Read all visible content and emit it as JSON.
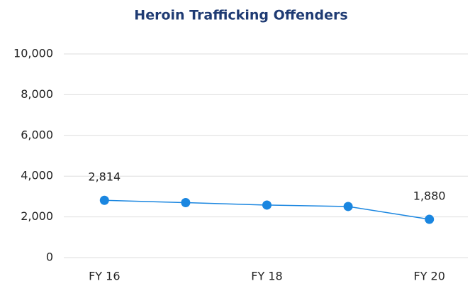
{
  "chart_data": {
    "type": "line",
    "title": "Heroin Trafficking Offenders",
    "categories": [
      "FY 16",
      null,
      "FY 18",
      null,
      "FY 20"
    ],
    "series": [
      {
        "name": "Heroin Trafficking Offenders",
        "color": "#1a86e0",
        "values": [
          2814,
          2700,
          2580,
          2510,
          1880
        ],
        "value_labels": [
          "2,814",
          null,
          null,
          null,
          "1,880"
        ]
      }
    ],
    "ylim": [
      0,
      10000
    ],
    "yticks": [
      0,
      {
        "value": 2000,
        "label": "2,000"
      },
      {
        "value": 4000,
        "label": "4,000"
      },
      {
        "value": 6000,
        "label": "6,000"
      },
      {
        "value": 8000,
        "label": "8,000"
      },
      {
        "value": 10000,
        "label": "10,000"
      }
    ],
    "grid": true
  }
}
